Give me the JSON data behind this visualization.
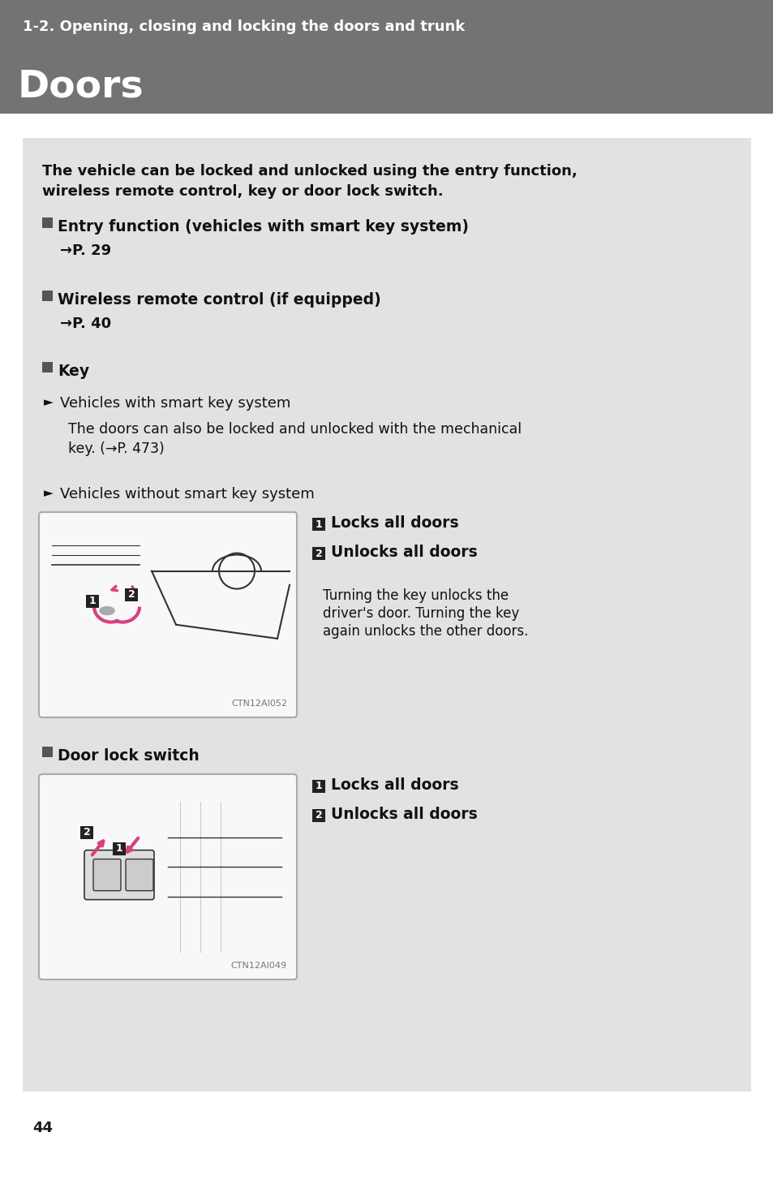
{
  "page_bg": "#ffffff",
  "header_bg": "#737373",
  "content_bg": "#e2e2e2",
  "header_subtitle": "1-2. Opening, closing and locking the doors and trunk",
  "header_title": "Doors",
  "header_subtitle_color": "#ffffff",
  "header_title_color": "#ffffff",
  "page_number": "44",
  "intro_line1": "The vehicle can be locked and unlocked using the entry function,",
  "intro_line2": "wireless remote control, key or door lock switch.",
  "section1_heading": "Entry function (vehicles with smart key system)",
  "section1_sub": "→P. 29",
  "section2_heading": "Wireless remote control (if equipped)",
  "section2_sub": "→P. 40",
  "section3_heading": "Key",
  "sub1_heading": "Vehicles with smart key system",
  "sub1_text_line1": "The doors can also be locked and unlocked with the mechanical",
  "sub1_text_line2": "key. (→P. 473)",
  "sub2_heading": "Vehicles without smart key system",
  "image1_label": "CTN12AI052",
  "note1_badge": "1",
  "note1_text": "Locks all doors",
  "note2_badge": "2",
  "note2_text": "Unlocks all doors",
  "note3_line1": "Turning the key unlocks the",
  "note3_line2": "driver's door. Turning the key",
  "note3_line3": "again unlocks the other doors.",
  "section4_heading": "Door lock switch",
  "image2_label": "CTN12AI049",
  "note4_badge": "1",
  "note4_text": "Locks all doors",
  "note5_badge": "2",
  "note5_text": "Unlocks all doors",
  "text_color": "#1a1a1a",
  "bold_color": "#111111",
  "square_color": "#555555",
  "badge_color": "#222222",
  "pink_color": "#d94080",
  "image_border_color": "#aaaaaa",
  "image_bg_color": "#f8f8f8",
  "line_color": "#333333"
}
